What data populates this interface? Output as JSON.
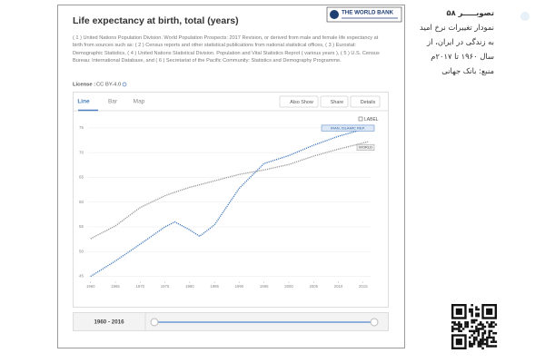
{
  "page": {
    "logo": "THE WORLD BANK",
    "title": "Life expectancy at birth, total (years)",
    "source": "( 1 ) United Nations Population Division. World Population Prospects: 2017 Revision, or derived from male and female life expectancy at birth from sources such as: ( 2 ) Census reports and other statistical publications from national statistical offices, ( 3 ) Eurostat: Demographic Statistics, ( 4 ) United Nations Statistical Division. Population and Vital Statistics Reprot ( various years ), ( 5 ) U.S. Census Bureau: International Database, and ( 6 ) Secretariat of the Pacific Community: Statistics and Demography Programme.",
    "license_label": "License :",
    "license": "CC BY-4.0",
    "tabs": [
      "Line",
      "Bar",
      "Map"
    ],
    "buttons": [
      "Also Show",
      "Share",
      "Details"
    ],
    "label_toggle": "LABEL",
    "range": "1960 - 2016",
    "caption": {
      "figure": "تصویـــــر ۵۸",
      "lines": [
        "نمودار تغییرات نرخ امید",
        "به زندگی در ایران، از",
        "سال ۱۹۶۰ تا ۲۰۱۷م"
      ],
      "source": "منبع: بانک جهانی"
    }
  },
  "chart_data": {
    "type": "line",
    "x": [
      1960,
      1965,
      1970,
      1975,
      1977,
      1980,
      1982,
      1985,
      1990,
      1995,
      2000,
      2005,
      2010,
      2016
    ],
    "series": [
      {
        "name": "IRAN, ISLAMIC REP.",
        "color": "#4a7fc1",
        "values": [
          45.0,
          48.1,
          51.5,
          55.0,
          56.0,
          54.4,
          53.1,
          55.4,
          62.8,
          67.8,
          69.4,
          71.5,
          73.3,
          75.0
        ]
      },
      {
        "name": "WORLD",
        "color": "#9a9a9a",
        "values": [
          52.6,
          55.2,
          58.9,
          61.3,
          62.0,
          63.0,
          63.5,
          64.3,
          65.6,
          66.5,
          67.6,
          69.3,
          70.7,
          72.2
        ]
      }
    ],
    "xlim": [
      1959.5,
      2016.5
    ],
    "ylim": [
      44,
      77
    ],
    "xticks": [
      1960,
      1965,
      1970,
      1975,
      1980,
      1985,
      1990,
      1995,
      2000,
      2005,
      2010,
      2015
    ],
    "yticks": [
      45,
      50,
      55,
      60,
      65,
      70,
      75
    ],
    "grid": true
  }
}
